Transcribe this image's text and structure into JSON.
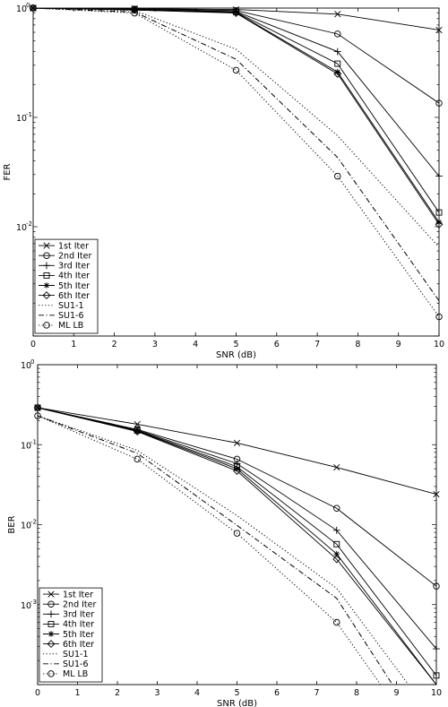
{
  "chart_data": [
    {
      "type": "line",
      "title": "",
      "xlabel": "SNR (dB)",
      "ylabel": "FER",
      "xlim": [
        0,
        10
      ],
      "ylim": [
        0.001,
        1
      ],
      "yscale": "log",
      "grid": false,
      "legend_position": "bottom-left",
      "x_ticks": [
        0,
        1,
        2,
        3,
        4,
        5,
        6,
        7,
        8,
        9,
        10
      ],
      "y_ticks": [
        {
          "value": 0.01,
          "base": "10",
          "exp": "-2"
        },
        {
          "value": 0.1,
          "base": "10",
          "exp": "-1"
        },
        {
          "value": 1,
          "base": "10",
          "exp": "0"
        }
      ],
      "x": [
        0,
        2.5,
        5,
        7.5,
        10
      ],
      "series": [
        {
          "name": "1st Iter",
          "line": "solid",
          "marker": "x",
          "values": [
            1,
            0.99,
            0.97,
            0.88,
            0.63
          ]
        },
        {
          "name": "2nd Iter",
          "line": "solid",
          "marker": "circle",
          "values": [
            1,
            0.98,
            0.95,
            0.58,
            0.135
          ]
        },
        {
          "name": "3rd Iter",
          "line": "solid",
          "marker": "plus",
          "values": [
            1,
            0.97,
            0.93,
            0.4,
            0.029
          ]
        },
        {
          "name": "4th Iter",
          "line": "solid",
          "marker": "square",
          "values": [
            1,
            0.97,
            0.92,
            0.31,
            0.0135
          ]
        },
        {
          "name": "5th Iter",
          "line": "solid",
          "marker": "star",
          "values": [
            1,
            0.96,
            0.91,
            0.26,
            0.011
          ]
        },
        {
          "name": "6th Iter",
          "line": "solid",
          "marker": "diamond",
          "values": [
            1,
            0.96,
            0.9,
            0.25,
            0.0105
          ]
        },
        {
          "name": "SU1-1",
          "line": "dotted",
          "marker": "none",
          "values": [
            1,
            0.95,
            0.42,
            0.068,
            0.0065
          ]
        },
        {
          "name": "SU1-6",
          "line": "dashdot",
          "marker": "none",
          "values": [
            1,
            0.92,
            0.34,
            0.043,
            0.0021
          ]
        },
        {
          "name": "ML LB",
          "line": "dotted",
          "marker": "circle",
          "values": [
            1,
            0.9,
            0.27,
            0.029,
            0.0015
          ]
        }
      ]
    },
    {
      "type": "line",
      "title": "",
      "xlabel": "SNR (dB)",
      "ylabel": "BER",
      "xlim": [
        0,
        10
      ],
      "ylim": [
        0.0001,
        1
      ],
      "yscale": "log",
      "grid": false,
      "legend_position": "bottom-left",
      "x_ticks": [
        0,
        1,
        2,
        3,
        4,
        5,
        6,
        7,
        8,
        9,
        10
      ],
      "y_ticks": [
        {
          "value": 0.001,
          "base": "10",
          "exp": "-3"
        },
        {
          "value": 0.01,
          "base": "10",
          "exp": "-2"
        },
        {
          "value": 0.1,
          "base": "10",
          "exp": "-1"
        },
        {
          "value": 1,
          "base": "10",
          "exp": "0"
        }
      ],
      "x": [
        0,
        2.5,
        5,
        7.5,
        10
      ],
      "series": [
        {
          "name": "1st Iter",
          "line": "solid",
          "marker": "x",
          "values": [
            0.29,
            0.18,
            0.105,
            0.052,
            0.024
          ]
        },
        {
          "name": "2nd Iter",
          "line": "solid",
          "marker": "circle",
          "values": [
            0.29,
            0.155,
            0.066,
            0.016,
            0.0017
          ]
        },
        {
          "name": "3rd Iter",
          "line": "solid",
          "marker": "plus",
          "values": [
            0.29,
            0.152,
            0.058,
            0.0085,
            0.00028
          ]
        },
        {
          "name": "4th Iter",
          "line": "solid",
          "marker": "square",
          "values": [
            0.29,
            0.15,
            0.053,
            0.0057,
            0.00013
          ]
        },
        {
          "name": "5th Iter",
          "line": "solid",
          "marker": "star",
          "values": [
            0.29,
            0.148,
            0.05,
            0.0043,
            0.0001
          ]
        },
        {
          "name": "6th Iter",
          "line": "solid",
          "marker": "diamond",
          "values": [
            0.29,
            0.146,
            0.047,
            0.0037,
            9e-05
          ]
        },
        {
          "name": "SU1-1",
          "line": "dotted",
          "marker": "none",
          "x": [
            0,
            2.5,
            5,
            7.5,
            9.3
          ],
          "values": [
            0.23,
            0.085,
            0.013,
            0.0016,
            0.0001
          ]
        },
        {
          "name": "SU1-6",
          "line": "dashdot",
          "marker": "none",
          "x": [
            0,
            2.5,
            5,
            7.5,
            8.9
          ],
          "values": [
            0.23,
            0.078,
            0.0098,
            0.0012,
            0.0001
          ]
        },
        {
          "name": "ML LB",
          "line": "dotted",
          "marker": "circle",
          "x": [
            0,
            2.5,
            5,
            7.5,
            8.6
          ],
          "values": [
            0.23,
            0.066,
            0.0078,
            0.0006,
            0.0001
          ]
        }
      ]
    }
  ]
}
